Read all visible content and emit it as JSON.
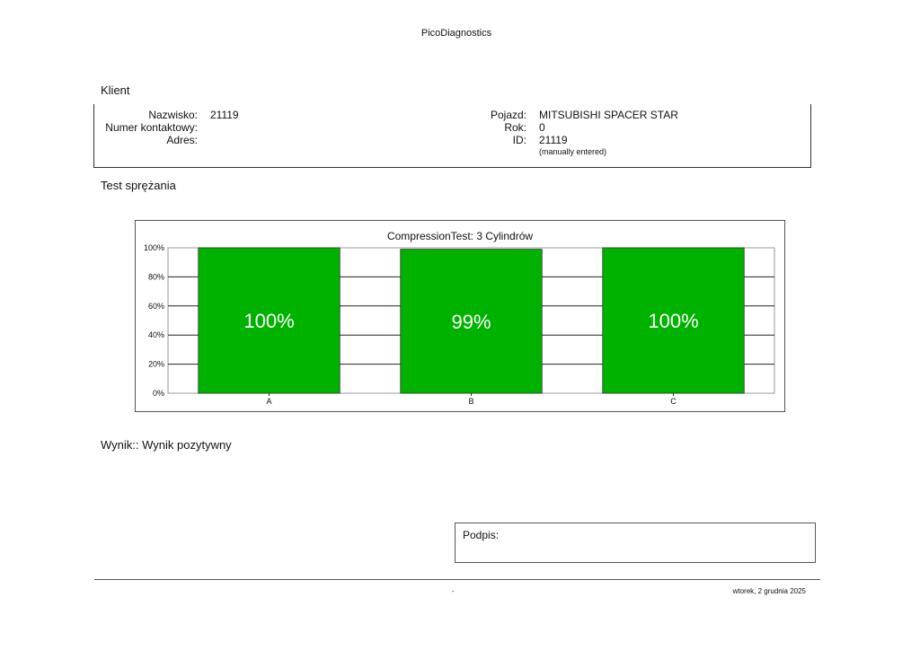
{
  "header": {
    "title": "PicoDiagnostics"
  },
  "client": {
    "section_title": "Klient",
    "left": [
      {
        "label": "Nazwisko:",
        "value": "21119"
      },
      {
        "label": "Numer kontaktowy:",
        "value": ""
      },
      {
        "label": "Adres:",
        "value": ""
      }
    ],
    "right": [
      {
        "label": "Pojazd:",
        "value": "MITSUBISHI SPACER STAR"
      },
      {
        "label": "Rok:",
        "value": "0"
      },
      {
        "label": "ID:",
        "value": "21119"
      }
    ],
    "id_note": "(manually entered)"
  },
  "test": {
    "section_title": "Test sprężania"
  },
  "chart_data": {
    "type": "bar",
    "title": "CompressionTest: 3 Cylindrów",
    "categories": [
      "A",
      "B",
      "C"
    ],
    "values": [
      100,
      99,
      100
    ],
    "data_labels": [
      "100%",
      "99%",
      "100%"
    ],
    "ylim": [
      0,
      100
    ],
    "y_ticks": [
      "0%",
      "20%",
      "40%",
      "60%",
      "80%",
      "100%"
    ],
    "grid": true,
    "bar_color": "#00b200"
  },
  "result": {
    "text": "Wynik:: Wynik pozytywny"
  },
  "signature": {
    "label": "Podpis:"
  },
  "footer": {
    "center": "-",
    "date": "wtorek, 2 grudnia 2025"
  }
}
